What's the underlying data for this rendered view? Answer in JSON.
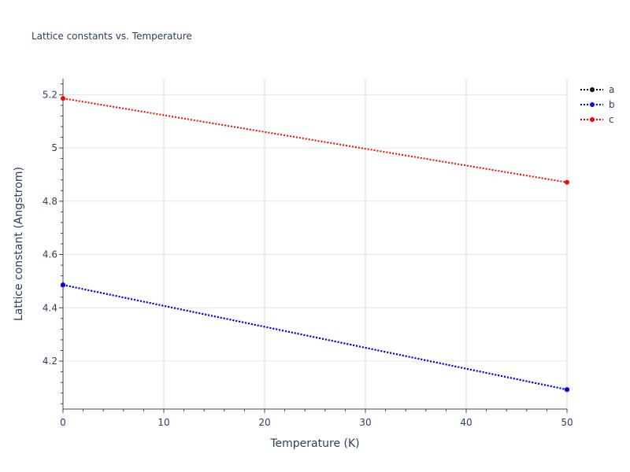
{
  "chart_data": {
    "type": "line",
    "title": "Lattice constants vs. Temperature",
    "xlabel": "Temperature (K)",
    "ylabel": "Lattice constant (Angstrom)",
    "xlim": [
      0,
      50
    ],
    "ylim": [
      4.02,
      5.26
    ],
    "xticks": [
      0,
      10,
      20,
      30,
      40,
      50
    ],
    "yticks": [
      4.2,
      4.4,
      4.6,
      4.8,
      5,
      5.2
    ],
    "xtick_labels": [
      "0",
      "10",
      "20",
      "30",
      "40",
      "50"
    ],
    "ytick_labels": [
      "4.2",
      "4.4",
      "4.6",
      "4.8",
      "5",
      "5.2"
    ],
    "grid": true,
    "legend_position": "top-right",
    "line_style": "dotted",
    "series": [
      {
        "name": "a",
        "color": "#000000",
        "x": [
          0,
          50
        ],
        "y": [
          4.486,
          4.093
        ]
      },
      {
        "name": "b",
        "color": "#0000ff",
        "x": [
          0,
          50
        ],
        "y": [
          4.486,
          4.093
        ]
      },
      {
        "name": "c",
        "color": "#ff0000",
        "x": [
          0,
          50
        ],
        "y": [
          5.186,
          4.871
        ]
      }
    ]
  }
}
